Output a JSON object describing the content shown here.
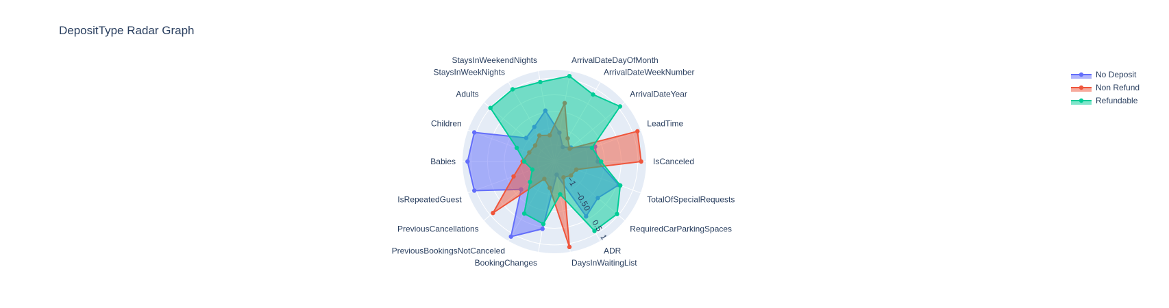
{
  "chart_data": {
    "type": "radar",
    "title": "DepositType Radar Graph",
    "categories": [
      "IsCanceled",
      "LeadTime",
      "ArrivalDateYear",
      "ArrivalDateWeekNumber",
      "ArrivalDateDayOfMonth",
      "StaysInWeekendNights",
      "StaysInWeekNights",
      "Adults",
      "Children",
      "Babies",
      "IsRepeatedGuest",
      "PreviousCancellations",
      "PreviousBookingsNotCanceled",
      "BookingChanges",
      "DaysInWaitingList",
      "ADR",
      "RequiredCarParkingSpaces",
      "TotalOfSpecialRequests"
    ],
    "radial_ticks": [
      "−1",
      "−0.5",
      "0",
      "0.5",
      "1"
    ],
    "radial_range": [
      -1.5,
      1.25
    ],
    "series": [
      {
        "name": "No Deposit",
        "color": "#636efa",
        "values": [
          -0.2,
          -0.2,
          -0.85,
          -1.0,
          -0.62,
          0.05,
          -0.3,
          -0.4,
          1.05,
          1.1,
          1.05,
          -0.2,
          1.1,
          0.55,
          -1.1,
          0.4,
          0.2,
          0.55
        ]
      },
      {
        "name": "Non Refund",
        "color": "#ef553b",
        "values": [
          1.1,
          1.15,
          -0.9,
          -0.7,
          0.28,
          -0.7,
          -0.6,
          -0.75,
          -0.7,
          -0.55,
          -0.2,
          0.9,
          -0.9,
          -0.7,
          1.1,
          -0.95,
          -0.85,
          -0.8
        ]
      },
      {
        "name": "Refundable",
        "color": "#00cc96",
        "values": [
          -0.1,
          -0.3,
          1.07,
          0.82,
          1.1,
          0.92,
          1.0,
          1.0,
          -0.3,
          -0.6,
          -0.8,
          -0.55,
          0.3,
          0.4,
          -0.5,
          0.9,
          0.95,
          0.6
        ]
      }
    ],
    "legend_position": "top-right",
    "grid": true
  }
}
